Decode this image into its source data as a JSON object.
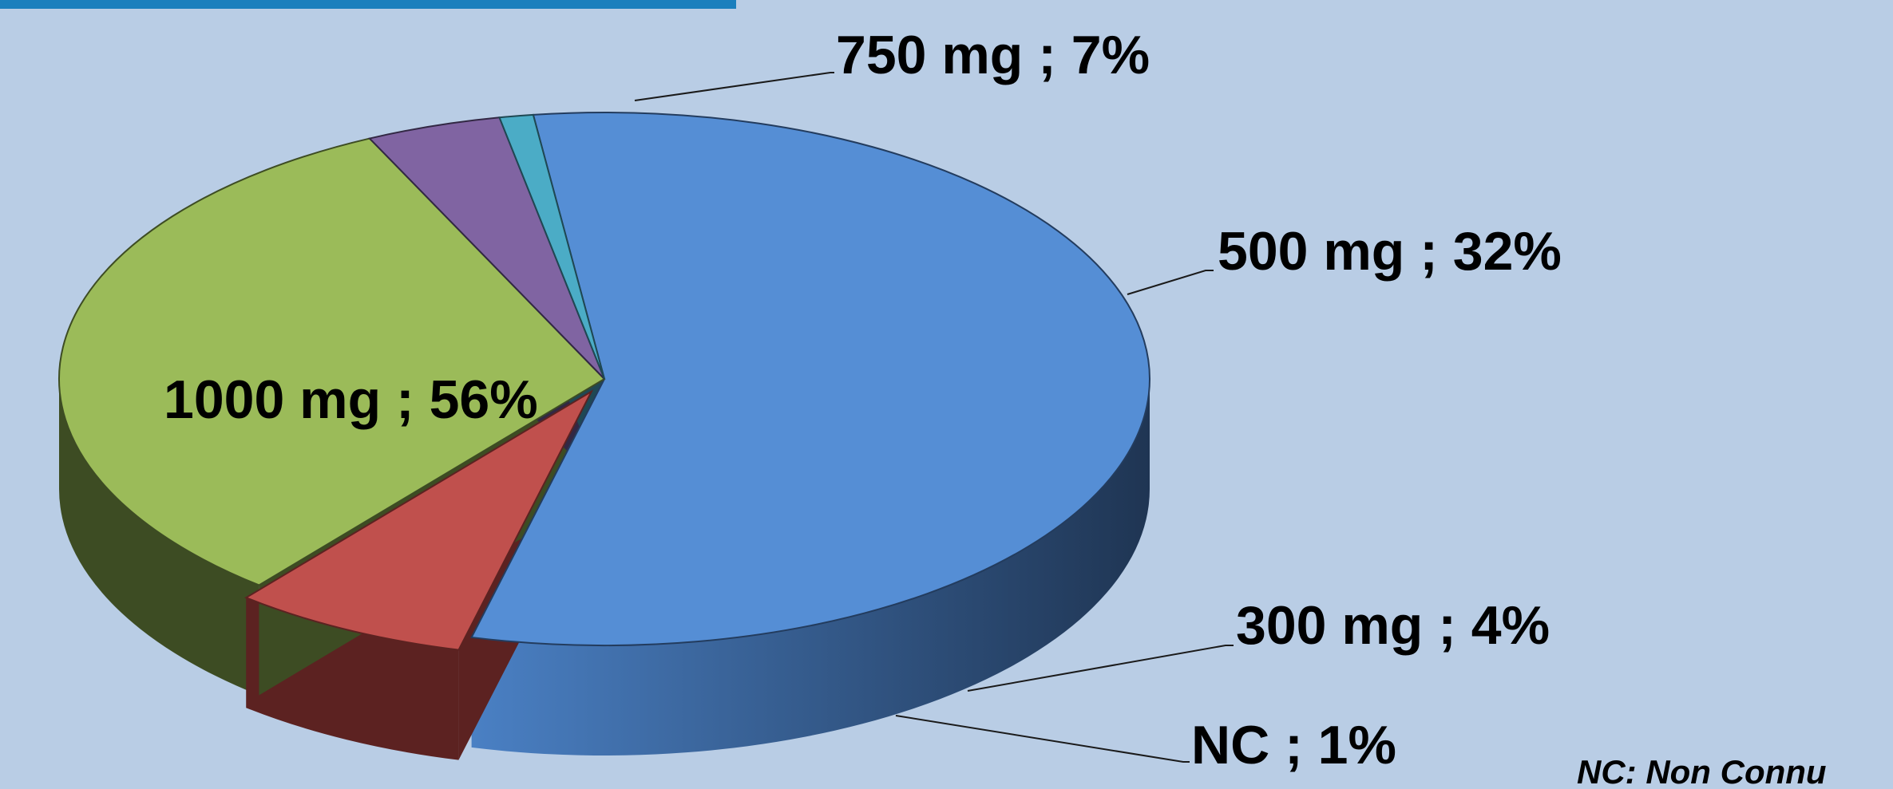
{
  "chart_data": {
    "type": "pie",
    "title": "",
    "slices": [
      {
        "label": "1000 mg ; 56%",
        "value": 56,
        "color": "#558ed5",
        "dark": "#233c5e"
      },
      {
        "label": "750 mg ; 7%",
        "value": 7,
        "color": "#c0504d",
        "dark": "#5c2221"
      },
      {
        "label": "500 mg ; 32%",
        "value": 32,
        "color": "#9bbb59",
        "dark": "#3d4c23"
      },
      {
        "label": "300 mg ; 4%",
        "value": 4,
        "color": "#8064a2",
        "dark": "#322844"
      },
      {
        "label": "NC ; 1%",
        "value": 1,
        "color": "#4bacc6",
        "dark": "#1f4853"
      }
    ],
    "legend": "none",
    "footnote": "NC: Non Connu"
  },
  "colors": {
    "background": "#b9cde5",
    "accent_bar": "#1b7fbd"
  }
}
